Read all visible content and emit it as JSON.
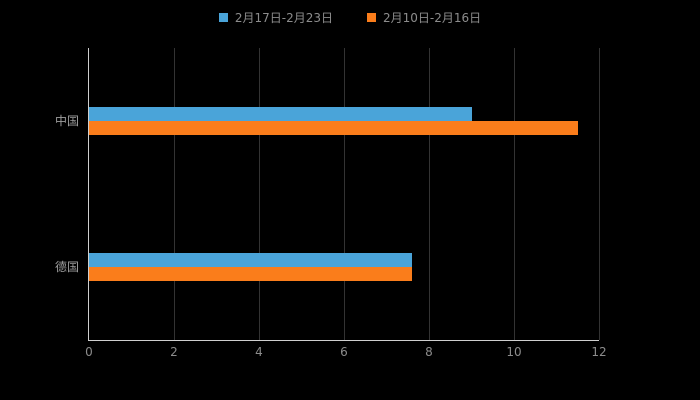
{
  "chart_data": {
    "type": "bar",
    "orientation": "horizontal",
    "title": "",
    "categories": [
      "中国",
      "德国"
    ],
    "series": [
      {
        "name": "2月17日-2月23日",
        "color": "#4AA4D9",
        "values": [
          9.0,
          7.6
        ]
      },
      {
        "name": "2月10日-2月16日",
        "color": "#FA7D1B",
        "values": [
          11.5,
          7.6
        ]
      }
    ],
    "xlim": [
      0,
      12
    ],
    "xticks": [
      0,
      2,
      4,
      6,
      8,
      10,
      12
    ],
    "grid": true,
    "legend_position": "top",
    "background": "#000000"
  },
  "colors": {
    "background": "#000000",
    "axis_line": "#cfcfcf",
    "gridline": "#333333",
    "tick_text": "#8c8c8c",
    "legend_text": "#8c8c8c",
    "category_text": "#9e9e9e"
  }
}
